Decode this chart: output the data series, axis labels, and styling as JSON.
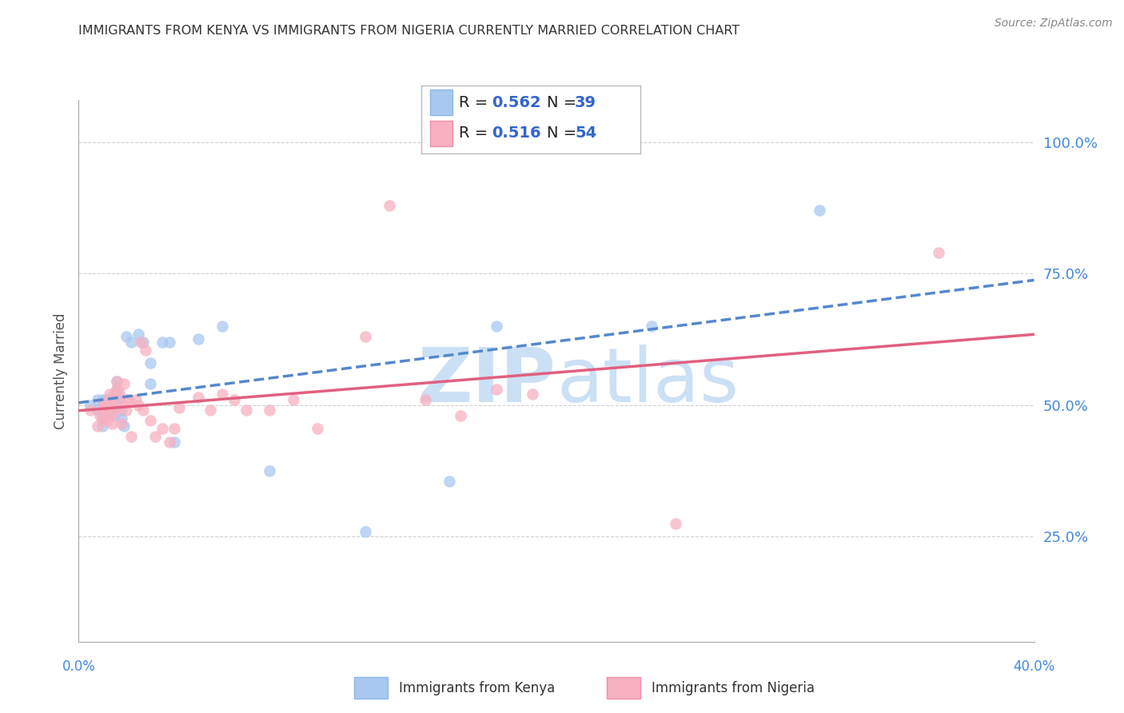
{
  "title": "IMMIGRANTS FROM KENYA VS IMMIGRANTS FROM NIGERIA CURRENTLY MARRIED CORRELATION CHART",
  "source": "Source: ZipAtlas.com",
  "ylabel": "Currently Married",
  "xlim": [
    0.0,
    0.4
  ],
  "ylim": [
    0.05,
    1.08
  ],
  "ytick_vals": [
    0.25,
    0.5,
    0.75,
    1.0
  ],
  "ytick_labels": [
    "25.0%",
    "50.0%",
    "75.0%",
    "100.0%"
  ],
  "xtick_left_label": "0.0%",
  "xtick_right_label": "40.0%",
  "kenya_r": "0.562",
  "kenya_n": "39",
  "nigeria_r": "0.516",
  "nigeria_n": "54",
  "kenya_scatter_color": "#a8c8f0",
  "kenya_line_color": "#5588cc",
  "nigeria_scatter_color": "#f8b0c0",
  "nigeria_line_color": "#e06080",
  "legend_text_color": "#3366cc",
  "watermark_color": "#cce0f5",
  "background_color": "#ffffff",
  "grid_color": "#cccccc",
  "title_color": "#333333",
  "ytick_color": "#4488dd",
  "kenya_x": [
    0.005,
    0.008,
    0.008,
    0.01,
    0.01,
    0.01,
    0.01,
    0.012,
    0.012,
    0.013,
    0.013,
    0.014,
    0.015,
    0.015,
    0.015,
    0.016,
    0.016,
    0.016,
    0.017,
    0.018,
    0.018,
    0.019,
    0.02,
    0.022,
    0.025,
    0.027,
    0.03,
    0.03,
    0.035,
    0.038,
    0.04,
    0.05,
    0.06,
    0.08,
    0.12,
    0.155,
    0.175,
    0.24,
    0.31
  ],
  "kenya_y": [
    0.5,
    0.51,
    0.49,
    0.51,
    0.49,
    0.475,
    0.46,
    0.51,
    0.5,
    0.51,
    0.49,
    0.51,
    0.505,
    0.495,
    0.48,
    0.545,
    0.53,
    0.51,
    0.51,
    0.49,
    0.475,
    0.46,
    0.63,
    0.62,
    0.635,
    0.62,
    0.54,
    0.58,
    0.62,
    0.62,
    0.43,
    0.625,
    0.65,
    0.375,
    0.26,
    0.355,
    0.65,
    0.65,
    0.87
  ],
  "nigeria_x": [
    0.005,
    0.008,
    0.009,
    0.01,
    0.01,
    0.01,
    0.011,
    0.012,
    0.012,
    0.013,
    0.013,
    0.013,
    0.014,
    0.014,
    0.015,
    0.015,
    0.016,
    0.016,
    0.016,
    0.017,
    0.017,
    0.018,
    0.019,
    0.02,
    0.02,
    0.021,
    0.022,
    0.024,
    0.025,
    0.026,
    0.027,
    0.028,
    0.03,
    0.032,
    0.035,
    0.038,
    0.04,
    0.042,
    0.05,
    0.055,
    0.06,
    0.065,
    0.07,
    0.08,
    0.09,
    0.1,
    0.12,
    0.13,
    0.145,
    0.16,
    0.175,
    0.19,
    0.25,
    0.36
  ],
  "nigeria_y": [
    0.49,
    0.46,
    0.48,
    0.495,
    0.47,
    0.49,
    0.505,
    0.49,
    0.47,
    0.52,
    0.5,
    0.48,
    0.5,
    0.465,
    0.52,
    0.485,
    0.545,
    0.53,
    0.51,
    0.525,
    0.495,
    0.465,
    0.54,
    0.51,
    0.49,
    0.51,
    0.44,
    0.51,
    0.5,
    0.62,
    0.49,
    0.605,
    0.47,
    0.44,
    0.455,
    0.43,
    0.455,
    0.495,
    0.515,
    0.49,
    0.52,
    0.51,
    0.49,
    0.49,
    0.51,
    0.455,
    0.63,
    0.88,
    0.51,
    0.48,
    0.53,
    0.52,
    0.275,
    0.79
  ]
}
